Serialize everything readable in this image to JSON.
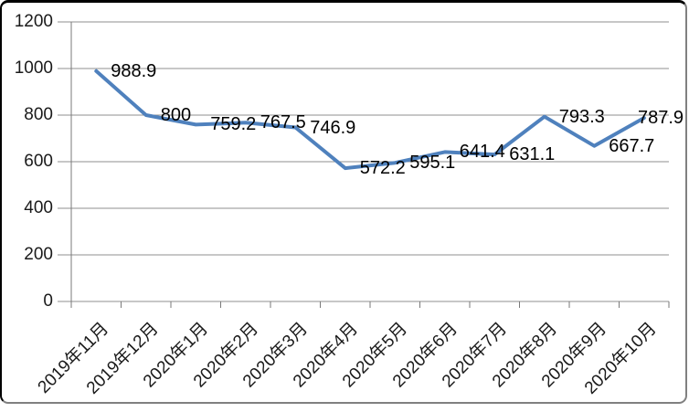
{
  "window": {
    "background": "#ffffff",
    "frame_border_top_left": "#000000",
    "frame_border_bottom_right": "#808080"
  },
  "chart_data": {
    "type": "line",
    "categories": [
      "2019年11月",
      "2019年12月",
      "2020年1月",
      "2020年2月",
      "2020年3月",
      "2020年4月",
      "2020年5月",
      "2020年6月",
      "2020年7月",
      "2020年8月",
      "2020年9月",
      "2020年10月"
    ],
    "values": [
      988.9,
      800,
      759.2,
      767.5,
      746.9,
      572.2,
      595.1,
      641.4,
      631.1,
      793.3,
      667.7,
      787.9
    ],
    "data_labels": [
      "988.9",
      "800",
      "759.2",
      "767.5",
      "746.9",
      "572.2",
      "595.1",
      "641.4",
      "631.1",
      "793.3",
      "667.7",
      "787.9"
    ],
    "yticks": [
      0,
      200,
      400,
      600,
      800,
      1000,
      1200
    ],
    "ytick_labels": [
      "0",
      "200",
      "400",
      "600",
      "800",
      "1000",
      "1200"
    ],
    "ylim": [
      0,
      1200
    ],
    "grid": "horizontal",
    "legend": "none",
    "markers": "none",
    "x_label_rotation": -45,
    "line_width": 4,
    "colors": {
      "line": "#4F81BD",
      "gridline": "#8f8f8f",
      "axis": "#7a7a7a",
      "text": "#1a1a1a"
    }
  }
}
